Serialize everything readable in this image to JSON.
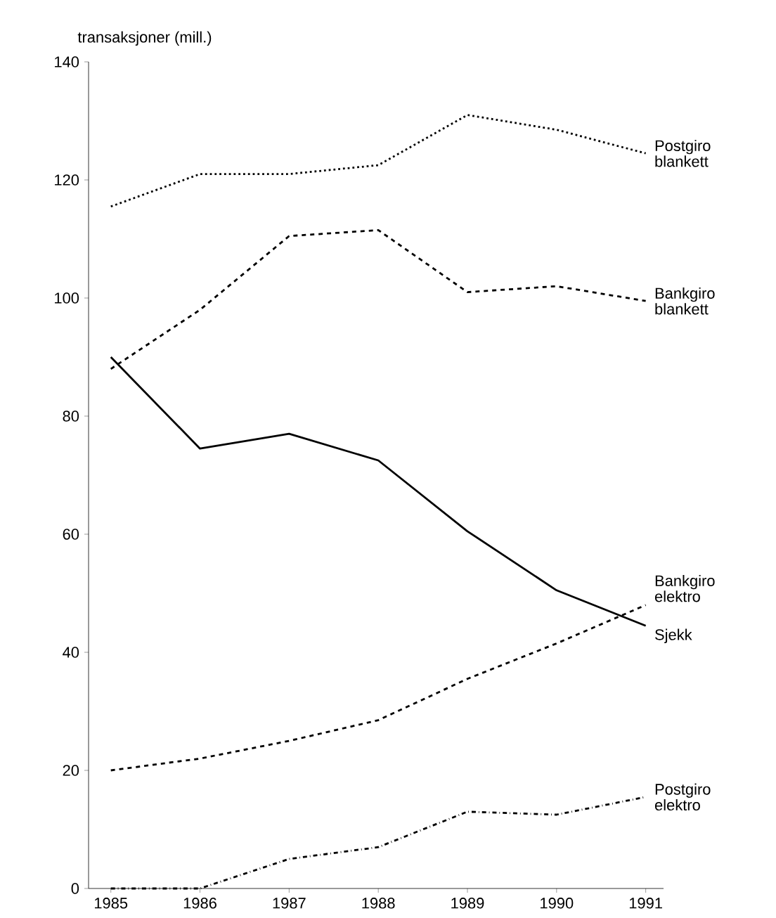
{
  "chart_data": {
    "type": "line",
    "ylabel": "transaksjoner (mill.)",
    "x": [
      1985,
      1986,
      1987,
      1988,
      1989,
      1990,
      1991
    ],
    "xlim": [
      1984.75,
      1991.2
    ],
    "xticks": [
      1985,
      1986,
      1987,
      1988,
      1989,
      1990,
      1991
    ],
    "ylim": [
      0,
      140
    ],
    "yticks": [
      0,
      20,
      40,
      60,
      80,
      100,
      120,
      140
    ],
    "grid": false,
    "marker": "none",
    "series": [
      {
        "name": "Postgiro blankett",
        "color": "#000000",
        "line_style": "dotted",
        "values": [
          115.5,
          121,
          121,
          122.5,
          131,
          128.5,
          124.5
        ]
      },
      {
        "name": "Bankgiro blankett",
        "color": "#000000",
        "line_style": "dashed",
        "values": [
          88,
          98,
          110.5,
          111.5,
          101,
          102,
          99.5
        ]
      },
      {
        "name": "Sjekk",
        "color": "#000000",
        "line_style": "solid",
        "values": [
          90,
          74.5,
          77,
          72.5,
          60.5,
          50.5,
          44.5
        ]
      },
      {
        "name": "Bankgiro elektro",
        "color": "#000000",
        "line_style": "dashed",
        "values": [
          20,
          22,
          25,
          28.5,
          35.5,
          41.5,
          48
        ]
      },
      {
        "name": "Postgiro elektro",
        "color": "#000000",
        "line_style": "dashdot",
        "values": [
          0,
          0,
          5,
          7,
          13,
          12.5,
          15.5
        ]
      }
    ]
  }
}
